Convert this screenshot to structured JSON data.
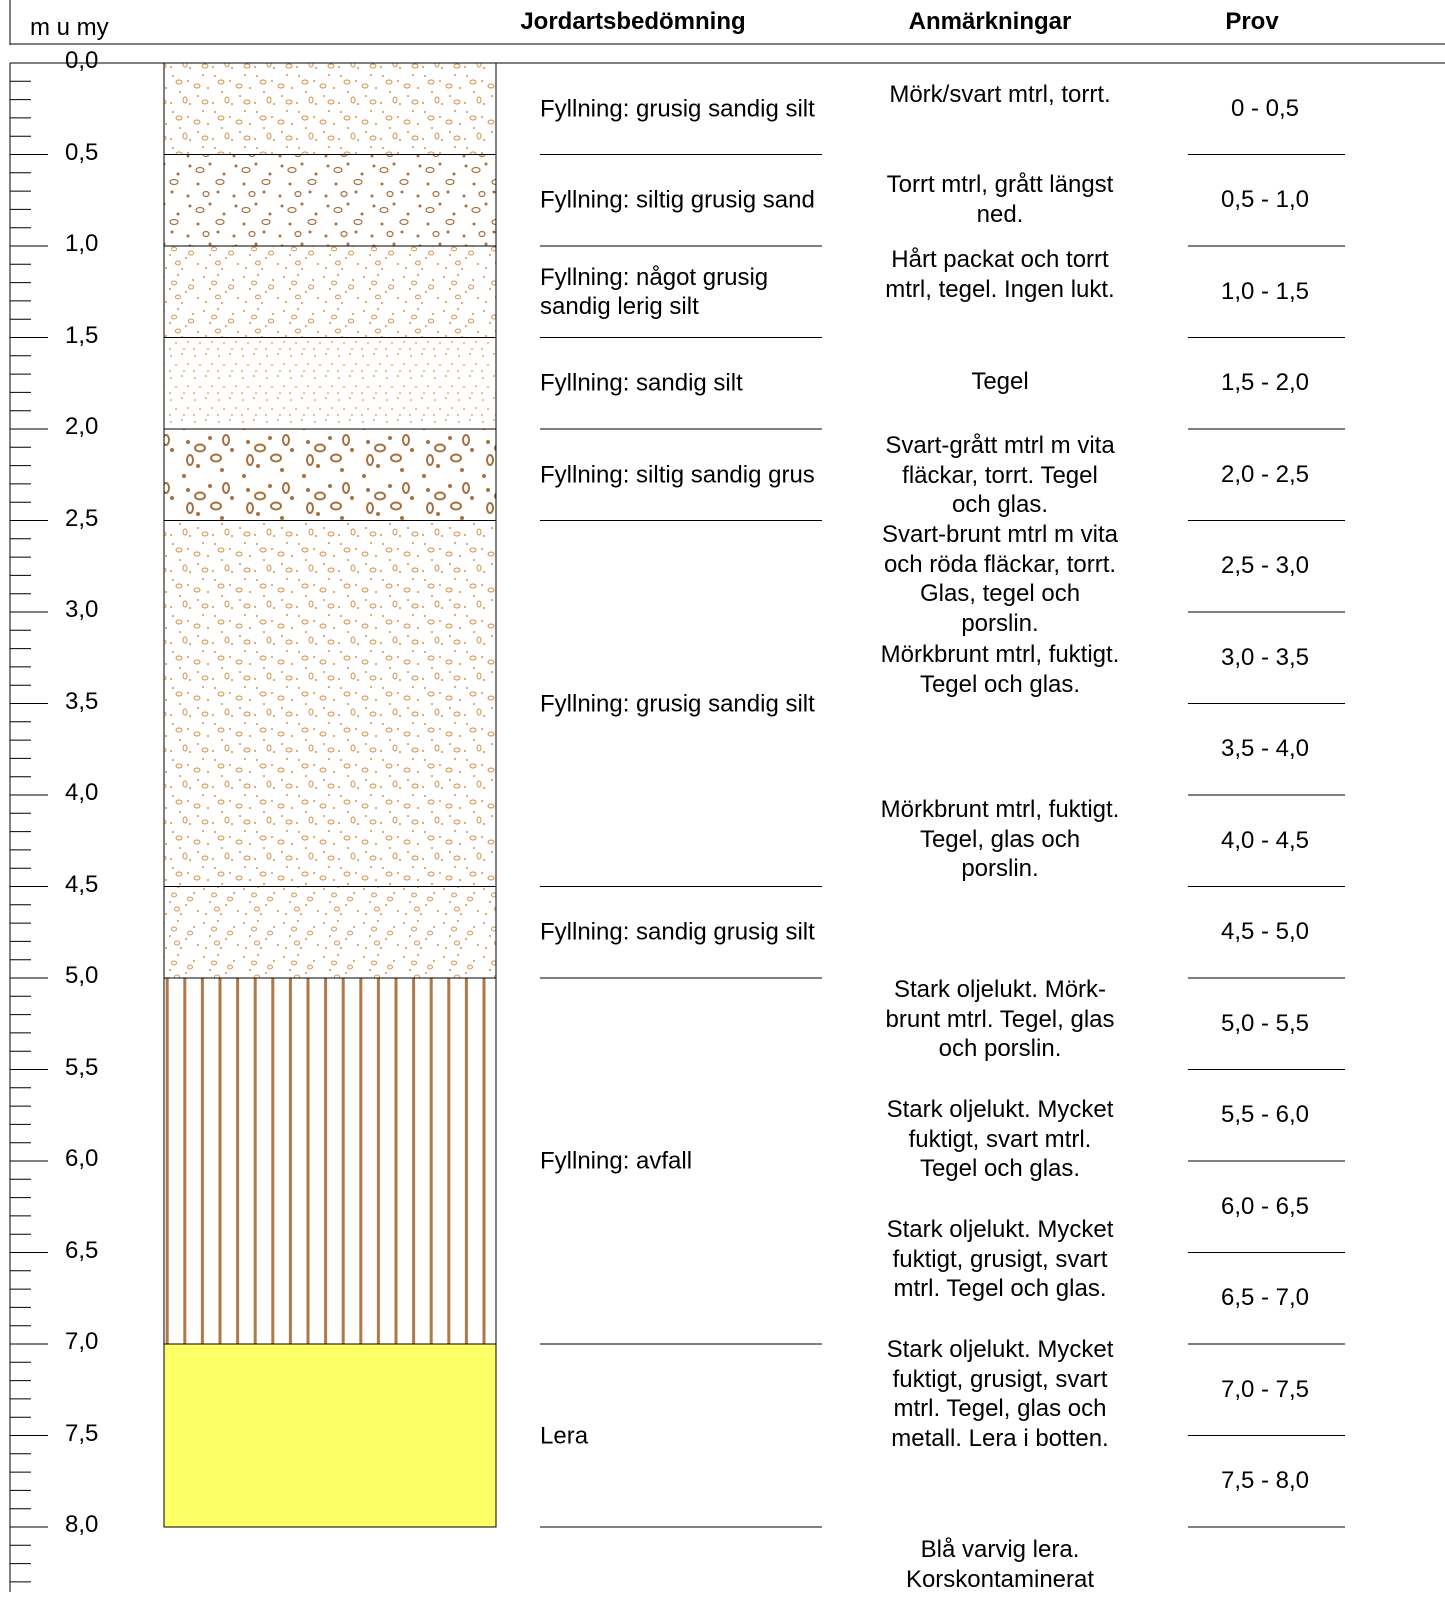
{
  "header": {
    "depth_unit": "m u my",
    "soil_col": "Jordartsbedömning",
    "remarks_col": "Anmärkningar",
    "sample_col": "Prov"
  },
  "depth_scale": {
    "labels": [
      "0,0",
      "0,5",
      "1,0",
      "1,5",
      "2,0",
      "2,5",
      "3,0",
      "3,5",
      "4,0",
      "4,5",
      "5,0",
      "5,5",
      "6,0",
      "6,5",
      "7,0",
      "7,5",
      "8,0"
    ],
    "min": 0,
    "max": 8,
    "minor_step": 0.1,
    "major_step": 0.5
  },
  "layers": [
    {
      "top": 0.0,
      "bottom": 0.5,
      "pattern": "grusig-sandig-silt",
      "label": "Fyllning: grusig sandig silt"
    },
    {
      "top": 0.5,
      "bottom": 1.0,
      "pattern": "siltig-grusig-sand",
      "label": "Fyllning: siltig grusig sand"
    },
    {
      "top": 1.0,
      "bottom": 1.5,
      "pattern": "grusig-sandig-lerig-silt",
      "label": "Fyllning: något grusig sandig lerig silt"
    },
    {
      "top": 1.5,
      "bottom": 2.0,
      "pattern": "sandig-silt",
      "label": "Fyllning: sandig silt"
    },
    {
      "top": 2.0,
      "bottom": 2.5,
      "pattern": "siltig-sandig-grus",
      "label": "Fyllning: siltig sandig grus"
    },
    {
      "top": 2.5,
      "bottom": 4.5,
      "pattern": "grusig-sandig-silt",
      "label": "Fyllning: grusig sandig silt"
    },
    {
      "top": 4.5,
      "bottom": 5.0,
      "pattern": "sandig-grusig-silt",
      "label": "Fyllning: sandig grusig silt"
    },
    {
      "top": 5.0,
      "bottom": 7.0,
      "pattern": "avfall",
      "label": "Fyllning: avfall"
    },
    {
      "top": 7.0,
      "bottom": 8.0,
      "pattern": "lera",
      "label": "Lera"
    }
  ],
  "remarks": [
    {
      "depth": 0.0,
      "text": "Mörk/svart mtrl, torrt."
    },
    {
      "depth": 0.5,
      "text": "Torrt mtrl, grått längst ned."
    },
    {
      "depth": 1.0,
      "text": "Hårt packat och torrt mtrl, tegel. Ingen lukt."
    },
    {
      "depth": 1.5,
      "text": "Tegel"
    },
    {
      "depth": 2.0,
      "text": "Svart-grått mtrl m vita fläckar, torrt. Tegel och glas."
    },
    {
      "depth": 2.5,
      "text": "Svart-brunt mtrl m vita och röda fläckar, torrt. Glas, tegel och porslin."
    },
    {
      "depth": 3.0,
      "text": "Mörkbrunt mtrl, fuktigt. Tegel och glas."
    },
    {
      "depth": 4.0,
      "text": "Mörkbrunt mtrl, fuktigt. Tegel, glas och porslin."
    },
    {
      "depth": 5.0,
      "text": "Stark oljelukt. Mörk-brunt mtrl. Tegel, glas och porslin."
    },
    {
      "depth": 5.5,
      "text": "Stark oljelukt. Mycket fuktigt, svart mtrl. Tegel och glas."
    },
    {
      "depth": 6.0,
      "text": "Stark oljelukt. Mycket fuktigt, grusigt, svart mtrl. Tegel och glas."
    },
    {
      "depth": 6.5,
      "text": "Stark oljelukt. Mycket fuktigt, grusigt, svart mtrl. Tegel, glas och metall. Lera i botten."
    },
    {
      "depth": 8.0,
      "text": "Blå varvig lera. Korskontaminerat"
    }
  ],
  "samples": [
    "0 - 0,5",
    "0,5 - 1,0",
    "1,0 - 1,5",
    "1,5 - 2,0",
    "2,0 - 2,5",
    "2,5 - 3,0",
    "3,0 - 3,5",
    "3,5 - 4,0",
    "4,0 - 4,5",
    "4,5 - 5,0",
    "5,0 - 5,5",
    "5,5 - 6,0",
    "6,0 - 6,5",
    "6,5 - 7,0",
    "7,0 - 7,5",
    "7,5 - 8,0"
  ],
  "colors": {
    "line": "#000000",
    "sand_dot": "#d4924a",
    "gravel": "#a8703c",
    "avfall_stripe": "#b07846",
    "lera": "#ffff66"
  }
}
